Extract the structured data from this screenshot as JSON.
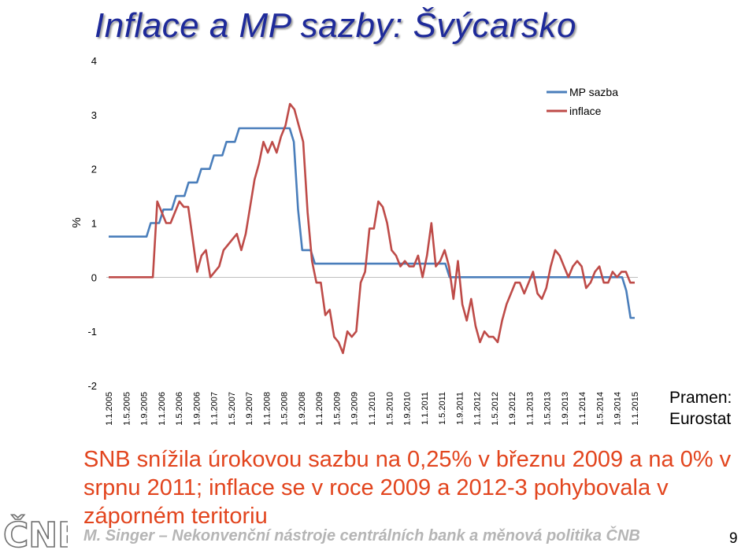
{
  "slide": {
    "title": "Inflace a MP sazby: Švýcarsko",
    "source": "Pramen:\nEurostat",
    "message": "SNB snížila úrokovou sazbu na 0,25% v březnu 2009 a na 0% v srpnu 2011; inflace se v roce 2009 a 2012-3 pohybovala v záporném teritoriu",
    "footer": "M. Singer – Nekonvenční nástroje centrálních bank a měnová politika ČNB",
    "page_number": "9",
    "logo_text": "ČNB"
  },
  "colors": {
    "title": "#1e2a9a",
    "mp_rate": "#4a7ebb",
    "inflation": "#be4b48",
    "message": "#e2451e",
    "footer": "#b5b5b5"
  },
  "chart_data": {
    "type": "line",
    "title": "",
    "xlabel": "",
    "ylabel": "%",
    "ylim": [
      -2,
      4
    ],
    "yticks": [
      -2,
      -1,
      0,
      1,
      2,
      3,
      4
    ],
    "x_tick_labels": [
      "1.1.2005",
      "1.5.2005",
      "1.9.2005",
      "1.1.2006",
      "1.5.2006",
      "1.9.2006",
      "1.1.2007",
      "1.5.2007",
      "1.9.2007",
      "1.1.2008",
      "1.5.2008",
      "1.9.2008",
      "1.1.2009",
      "1.5.2009",
      "1.9.2009",
      "1.1.2010",
      "1.5.2010",
      "1.9.2010",
      "1.1.2011",
      "1.5.2011",
      "1.9.2011",
      "1.1.2012",
      "1.5.2012",
      "1.9.2012",
      "1.1.2013",
      "1.5.2013",
      "1.9.2013",
      "1.1.2014",
      "1.5.2014",
      "1.9.2014",
      "1.1.2015"
    ],
    "legend_position": "top-right",
    "series": [
      {
        "name": "MP sazba",
        "color": "#4a7ebb",
        "values": [
          0.75,
          0.75,
          0.75,
          0.75,
          0.75,
          0.75,
          0.75,
          0.75,
          0.75,
          0.75,
          1,
          1,
          1,
          1.25,
          1.25,
          1.25,
          1.5,
          1.5,
          1.5,
          1.75,
          1.75,
          1.75,
          2,
          2,
          2,
          2.25,
          2.25,
          2.25,
          2.5,
          2.5,
          2.5,
          2.75,
          2.75,
          2.75,
          2.75,
          2.75,
          2.75,
          2.75,
          2.75,
          2.75,
          2.75,
          2.75,
          2.75,
          2.75,
          2.5,
          1.25,
          0.5,
          0.5,
          0.5,
          0.25,
          0.25,
          0.25,
          0.25,
          0.25,
          0.25,
          0.25,
          0.25,
          0.25,
          0.25,
          0.25,
          0.25,
          0.25,
          0.25,
          0.25,
          0.25,
          0.25,
          0.25,
          0.25,
          0.25,
          0.25,
          0.25,
          0.25,
          0.25,
          0.25,
          0.25,
          0.25,
          0.25,
          0.25,
          0.25,
          0.25,
          0.25,
          0,
          0,
          0,
          0,
          0,
          0,
          0,
          0,
          0,
          0,
          0,
          0,
          0,
          0,
          0,
          0,
          0,
          0,
          0,
          0,
          0,
          0,
          0,
          0,
          0,
          0,
          0,
          0,
          0,
          0,
          0,
          0,
          0,
          0,
          0,
          0,
          0,
          0,
          0,
          0,
          0,
          0,
          -0.25,
          -0.75,
          -0.75
        ]
      },
      {
        "name": "inflace",
        "color": "#be4b48",
        "values": [
          0,
          0,
          0,
          0,
          0,
          0,
          0,
          0,
          0,
          0,
          0,
          1.4,
          1.2,
          1,
          1,
          1.2,
          1.4,
          1.3,
          1.3,
          0.7,
          0.1,
          0.4,
          0.5,
          0,
          0.1,
          0.2,
          0.5,
          0.6,
          0.7,
          0.8,
          0.5,
          0.8,
          1.3,
          1.8,
          2.1,
          2.5,
          2.3,
          2.5,
          2.3,
          2.6,
          2.8,
          3.2,
          3.1,
          2.8,
          2.5,
          1.2,
          0.3,
          -0.1,
          -0.1,
          -0.7,
          -0.6,
          -1.1,
          -1.2,
          -1.4,
          -1,
          -1.1,
          -1,
          -0.1,
          0.1,
          0.9,
          0.9,
          1.4,
          1.3,
          1,
          0.5,
          0.4,
          0.2,
          0.3,
          0.2,
          0.2,
          0.4,
          0,
          0.4,
          1,
          0.2,
          0.3,
          0.5,
          0.2,
          -0.4,
          0.3,
          -0.5,
          -0.8,
          -0.4,
          -0.9,
          -1.2,
          -1,
          -1.1,
          -1.1,
          -1.2,
          -0.8,
          -0.5,
          -0.3,
          -0.1,
          -0.1,
          -0.3,
          -0.1,
          0.1,
          -0.3,
          -0.4,
          -0.2,
          0.2,
          0.5,
          0.4,
          0.2,
          0,
          0.2,
          0.3,
          0.2,
          -0.2,
          -0.1,
          0.1,
          0.2,
          -0.1,
          -0.1,
          0.1,
          0,
          0.1,
          0.1,
          -0.1,
          -0.1
        ]
      }
    ]
  }
}
